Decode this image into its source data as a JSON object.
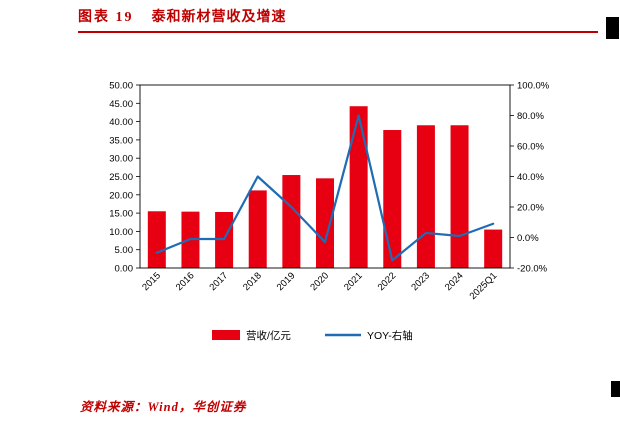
{
  "header": {
    "label": "图表  19",
    "title": "泰和新材营收及增速"
  },
  "source": "资料来源：Wind，华创证券",
  "colors": {
    "title_red": "#bf0000",
    "bar_red": "#e60012",
    "line_blue": "#1f6cb4",
    "axis_black": "#000000"
  },
  "chart_data": {
    "type": "bar",
    "subtype": "combo-bar-line",
    "title": "泰和新材营收及增速",
    "categories": [
      "2015",
      "2016",
      "2017",
      "2018",
      "2019",
      "2020",
      "2021",
      "2022",
      "2023",
      "2024",
      "2025Q1"
    ],
    "series": [
      {
        "name": "营收/亿元",
        "type": "bar",
        "axis": "left",
        "color": "#e60012",
        "values": [
          15.5,
          15.4,
          15.3,
          21.2,
          25.4,
          24.5,
          44.2,
          37.7,
          39.0,
          39.0,
          10.5
        ]
      },
      {
        "name": "YOY-右轴",
        "type": "line",
        "axis": "right",
        "color": "#1f6cb4",
        "values": [
          -10,
          -1,
          -1,
          40,
          20,
          -3,
          80,
          -15,
          3,
          1,
          9
        ]
      }
    ],
    "left_axis": {
      "min": 0,
      "max": 50,
      "step": 5,
      "format": "two-decimal"
    },
    "right_axis": {
      "min": -20,
      "max": 100,
      "step": 20,
      "format": "percent-one-decimal"
    },
    "grid": false,
    "legend_position": "bottom"
  }
}
